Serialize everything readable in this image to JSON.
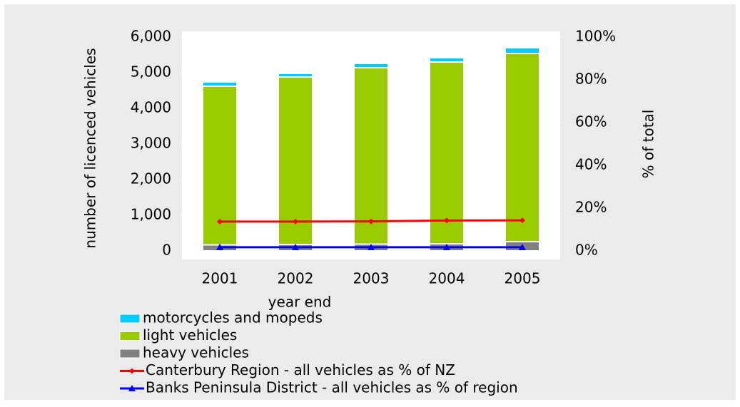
{
  "chart_data": {
    "type": "bar",
    "stacked": true,
    "categories": [
      "2001",
      "2002",
      "2003",
      "2004",
      "2005"
    ],
    "series": [
      {
        "name": "motorcycles and mopeds",
        "color": "#00ccff",
        "values": [
          120,
          100,
          120,
          120,
          160
        ]
      },
      {
        "name": "light vehicles",
        "color": "#99cc00",
        "values": [
          4450,
          4700,
          4950,
          5100,
          5280
        ]
      },
      {
        "name": "heavy vehicles",
        "color": "#808080",
        "values": [
          170,
          180,
          190,
          200,
          260
        ]
      },
      {
        "name": "Canterbury Region - all vehicles as % of NZ",
        "color": "#ff0000",
        "type": "line",
        "marker": "diamond",
        "axis": "y2",
        "values": [
          13.7,
          13.7,
          13.8,
          14.2,
          14.3
        ]
      },
      {
        "name": "Banks Peninsula District - all vehicles as % of region",
        "color": "#0000ff",
        "type": "line",
        "marker": "triangle",
        "axis": "y2",
        "values": [
          1.7,
          1.7,
          1.7,
          1.7,
          1.7
        ]
      }
    ],
    "xlabel": "year end",
    "ylabel": "number of licenced vehicles",
    "y2label": "% of total",
    "ylim": [
      0,
      6000
    ],
    "yticks": [
      0,
      {
        "value": 1000,
        "label": "1,000"
      },
      {
        "value": 2000,
        "label": "2,000"
      },
      {
        "value": 3000,
        "label": "3,000"
      },
      {
        "value": 4000,
        "label": "4,000"
      },
      {
        "value": 5000,
        "label": "5,000"
      },
      {
        "value": 6000,
        "label": "6,000"
      }
    ],
    "y2lim": [
      0,
      100
    ],
    "y2ticks": [
      {
        "value": 0,
        "label": "0%"
      },
      {
        "value": 20,
        "label": "20%"
      },
      {
        "value": 40,
        "label": "40%"
      },
      {
        "value": 60,
        "label": "60%"
      },
      {
        "value": 80,
        "label": "80%"
      },
      {
        "value": 100,
        "label": "100%"
      }
    ],
    "legend": "bottom-left"
  }
}
